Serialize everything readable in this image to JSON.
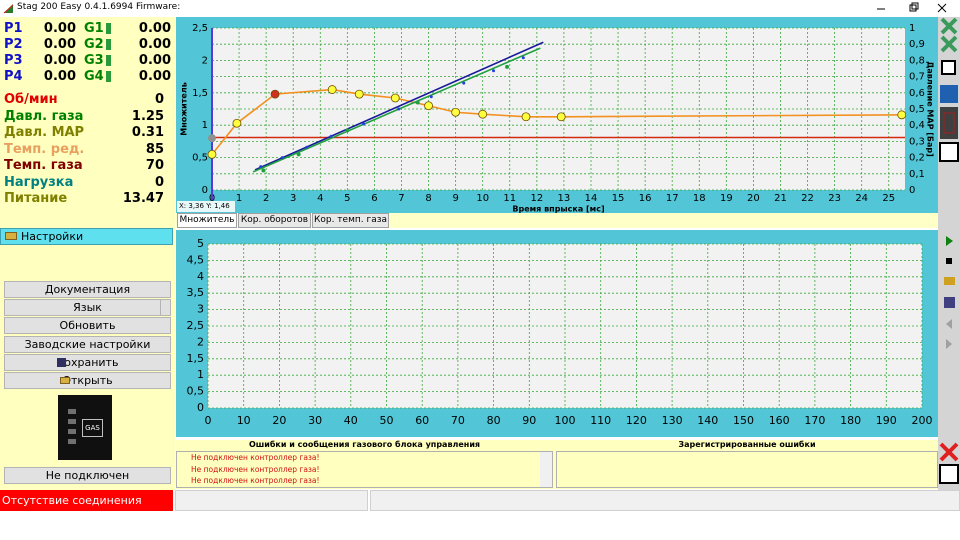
{
  "window": {
    "title": "Stag 200 Easy 0.4.1.6994 Firmware:"
  },
  "channels": [
    {
      "p": "P1",
      "p_value": "0.00",
      "g": "G1",
      "g_value": "0.00"
    },
    {
      "p": "P2",
      "p_value": "0.00",
      "g": "G2",
      "g_value": "0.00"
    },
    {
      "p": "P3",
      "p_value": "0.00",
      "g": "G3",
      "g_value": "0.00"
    },
    {
      "p": "P4",
      "p_value": "0.00",
      "g": "G4",
      "g_value": "0.00"
    }
  ],
  "parameters": [
    {
      "label": "Об/мин",
      "value": "0",
      "color": "#e00000"
    },
    {
      "label": "Давл. газа",
      "value": "1.25",
      "color": "#008000"
    },
    {
      "label": "Давл. MAP",
      "value": "0.31",
      "color": "#808000"
    },
    {
      "label": "Темп. ред.",
      "value": "85",
      "color": "#e8a060"
    },
    {
      "label": "Темп. газа",
      "value": "70",
      "color": "#800000"
    },
    {
      "label": "Нагрузка",
      "value": "0",
      "color": "#008080"
    },
    {
      "label": "Питание",
      "value": "13.47",
      "color": "#808000"
    }
  ],
  "settings": {
    "title": "Настройки",
    "buttons": [
      "Документация",
      "Язык",
      "Обновить",
      "Заводские настройки",
      "Сохранить",
      "Открыть"
    ]
  },
  "gas_indicator": "GAS",
  "connection_select": "Не подключен",
  "status": "Отсутствие соединения",
  "errors": {
    "title": "Ошибки и сообщения газового блока управления",
    "messages": [
      "Не подключен контроллер газа!",
      "Не подключен контроллер газа!",
      "Не подключен контроллер газа!"
    ],
    "registered_title": "Зарегистрированные ошибки"
  },
  "chart_data": [
    {
      "type": "line",
      "tabs": [
        "Множитель",
        "Кор. оборотов",
        "Кор. темп. газа"
      ],
      "cursor_readout": "X: 3,36  Y: 1,46",
      "xlabel": "Время впрыска [мс]",
      "ylabel": "Множитель",
      "y2label": "Давление MAP [Бар]",
      "xlim": [
        0,
        25.6
      ],
      "xticks": [
        0,
        1,
        2,
        3,
        4,
        5,
        6,
        7,
        8,
        9,
        10,
        11,
        12,
        13,
        14,
        15,
        16,
        17,
        18,
        19,
        20,
        21,
        22,
        23,
        24,
        25
      ],
      "ylim": [
        0,
        2.5
      ],
      "yticks": [
        0,
        {
          "value": 0.5,
          "label": "0,5"
        },
        1,
        {
          "value": 1.5,
          "label": "1,5"
        },
        2,
        {
          "value": 2.5,
          "label": "2,5"
        }
      ],
      "y2lim": [
        0,
        1
      ],
      "y2ticks": [
        0,
        {
          "value": 0.1,
          "label": "0,1"
        },
        {
          "value": 0.2,
          "label": "0,2"
        },
        {
          "value": 0.3,
          "label": "0,3"
        },
        {
          "value": 0.4,
          "label": "0,4"
        },
        {
          "value": 0.5,
          "label": "0,5"
        },
        {
          "value": 0.6,
          "label": "0,6"
        },
        {
          "value": 0.7,
          "label": "0,7"
        },
        {
          "value": 0.8,
          "label": "0,8"
        },
        {
          "value": 0.9,
          "label": "0,9"
        },
        1
      ],
      "grid": true,
      "series": [
        {
          "color": "#d42a10",
          "x": [
            0,
            25.6
          ],
          "values": [
            0.81,
            0.81
          ]
        },
        {
          "color": "#f39020",
          "x": [
            0,
            0.92,
            2.33,
            4.44,
            5.44,
            6.77,
            8.0,
            9.0,
            10.0,
            11.6,
            12.9,
            25.48
          ],
          "values": [
            0.55,
            1.03,
            1.48,
            1.55,
            1.48,
            1.42,
            1.3,
            1.2,
            1.17,
            1.13,
            1.13,
            1.16
          ],
          "marker_color": "#ffff40",
          "selected_point": 2,
          "selected_color": "#d03020",
          "marker_size": 4
        },
        {
          "color": "#1a1a9a",
          "x": [
            1.59,
            12.24
          ],
          "values": [
            0.31,
            2.28
          ]
        },
        {
          "color": "#20a040",
          "x": [
            1.52,
            12.13
          ],
          "values": [
            0.28,
            2.19
          ]
        },
        {
          "color": "#2040e0",
          "mode": "markers",
          "marker_size": 1.5,
          "x": [
            1.8,
            2.6,
            3.5,
            4.4,
            5.6,
            6.9,
            8.1,
            9.3,
            10.4,
            11.5
          ],
          "values": [
            0.36,
            0.5,
            0.66,
            0.83,
            1.02,
            1.25,
            1.44,
            1.65,
            1.84,
            2.04
          ]
        },
        {
          "color": "#20a040",
          "mode": "markers",
          "marker_size": 2,
          "x": [
            1.9,
            3.2,
            5.0,
            7.6,
            10.9
          ],
          "values": [
            0.3,
            0.55,
            0.92,
            1.35,
            1.9
          ]
        },
        {
          "color": "#909090",
          "mode": "markers",
          "marker_size": 4,
          "x": [
            0
          ],
          "values": [
            0.8
          ]
        }
      ]
    },
    {
      "type": "line",
      "xlim": [
        0,
        200
      ],
      "xticks": [
        0,
        10,
        20,
        30,
        40,
        50,
        60,
        70,
        80,
        90,
        100,
        110,
        120,
        130,
        140,
        150,
        160,
        170,
        180,
        190,
        200
      ],
      "ylim": [
        0,
        5
      ],
      "yticks": [
        0,
        {
          "value": 0.5,
          "label": "0,5"
        },
        1,
        {
          "value": 1.5,
          "label": "1,5"
        },
        2,
        {
          "value": 2.5,
          "label": "2,5"
        },
        3,
        {
          "value": 3.5,
          "label": "3,5"
        },
        4,
        {
          "value": 4.5,
          "label": "4,5"
        },
        5
      ],
      "grid": true,
      "series": []
    }
  ]
}
